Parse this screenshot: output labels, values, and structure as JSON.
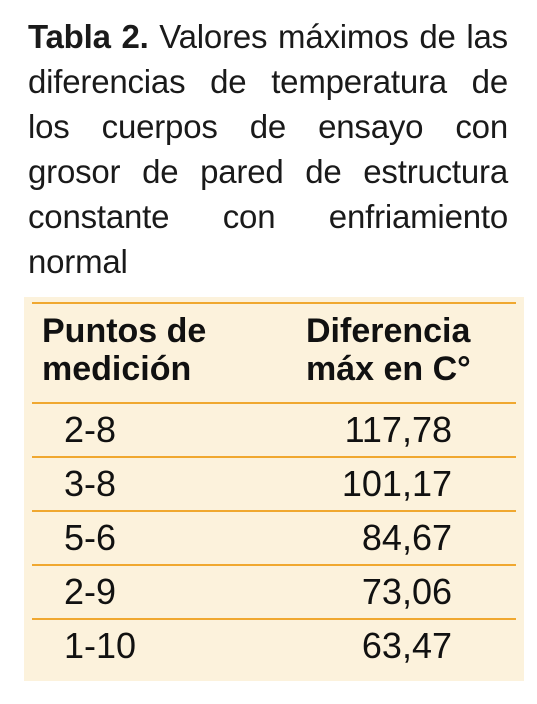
{
  "caption": {
    "label": "Tabla 2.",
    "text": " Valores máximos de las diferencias de temperatura de los cuerpos de ensayo con grosor de pared de estructura constante con enfriamiento normal"
  },
  "table": {
    "headers": {
      "col1": "Puntos de medición",
      "col2": "Diferencia máx en C°"
    },
    "rows": [
      {
        "punto": "2-8",
        "valor": "117,78"
      },
      {
        "punto": "3-8",
        "valor": "101,17"
      },
      {
        "punto": "5-6",
        "valor": "84,67"
      },
      {
        "punto": "2-9",
        "valor": "73,06"
      },
      {
        "punto": "1-10",
        "valor": "63,47"
      }
    ]
  },
  "colors": {
    "table_background": "#fcf2dc",
    "rule": "#f0a830"
  }
}
